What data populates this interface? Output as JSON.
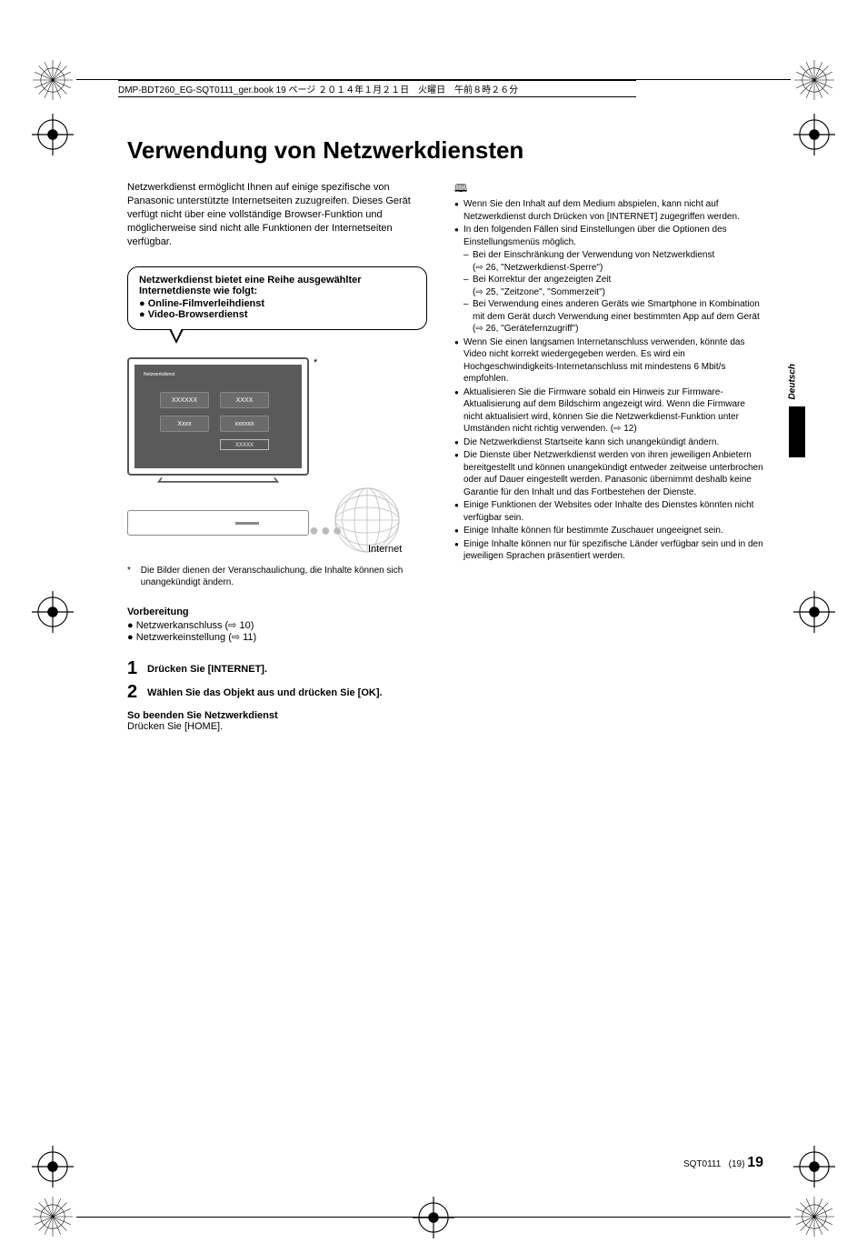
{
  "header_info": "DMP-BDT260_EG-SQT0111_ger.book  19 ページ  ２０１４年１月２１日　火曜日　午前８時２６分",
  "title": "Verwendung von Netzwerkdiensten",
  "intro": "Netzwerkdienst ermöglicht Ihnen auf einige spezifische von Panasonic unterstützte Internetseiten zuzugreifen. Dieses Gerät verfügt nicht über eine vollständige Browser-Funktion und möglicherweise sind nicht alle Funktionen der Internetseiten verfügbar.",
  "callout": {
    "title": "Netzwerkdienst bietet eine Reihe ausgewählter Internetdienste wie folgt:",
    "items": [
      "Online-Filmverleihdienst",
      "Video-Browserdienst"
    ]
  },
  "tv": {
    "header": "Netzwerkdienst",
    "b1": "XXXXXX",
    "b2": "XXXX",
    "b3": "Xxxx",
    "b4": "xxxxxx",
    "small": "XXXXX"
  },
  "asterisk": "*",
  "internet_label": "Internet",
  "footnote": {
    "mark": "*",
    "text": "Die Bilder dienen der Veranschaulichung, die Inhalte können sich unangekündigt ändern."
  },
  "prep": {
    "title": "Vorbereitung",
    "items": [
      "Netzwerkanschluss (⇨ 10)",
      "Netzwerkeinstellung (⇨ 11)"
    ]
  },
  "steps": [
    {
      "num": "1",
      "text": "Drücken Sie [INTERNET]."
    },
    {
      "num": "2",
      "text": "Wählen Sie das Objekt aus und drücken Sie [OK]."
    }
  ],
  "exit_title": "So beenden Sie Netzwerkdienst",
  "exit_text": "Drücken Sie [HOME].",
  "notes": [
    {
      "text": "Wenn Sie den Inhalt auf dem Medium abspielen, kann nicht auf Netzwerkdienst durch Drücken von [INTERNET] zugegriffen werden."
    },
    {
      "text": "In den folgenden Fällen sind Einstellungen über die Optionen des Einstellungsmenüs möglich.",
      "sub": [
        "Bei der Einschränkung der Verwendung von Netzwerkdienst\n(⇨ 26, \"Netzwerkdienst-Sperre\")",
        "Bei Korrektur der angezeigten Zeit\n(⇨ 25, \"Zeitzone\", \"Sommerzeit\")",
        "Bei Verwendung eines anderen Geräts wie Smartphone in Kombination mit dem Gerät durch Verwendung einer bestimmten App auf dem Gerät\n(⇨ 26, \"Gerätefernzugriff\")"
      ]
    },
    {
      "text": "Wenn Sie einen langsamen Internetanschluss verwenden, könnte das Video nicht korrekt wiedergegeben werden. Es wird ein Hochgeschwindigkeits-Internetanschluss mit mindestens 6 Mbit/s empfohlen."
    },
    {
      "text": "Aktualisieren Sie die Firmware sobald ein Hinweis zur Firmware-Aktualisierung auf dem Bildschirm angezeigt wird. Wenn die Firmware nicht aktualisiert wird, können Sie die Netzwerkdienst-Funktion unter Umständen nicht richtig verwenden. (⇨ 12)"
    },
    {
      "text": "Die Netzwerkdienst Startseite kann sich unangekündigt ändern."
    },
    {
      "text": "Die Dienste über Netzwerkdienst werden von ihren jeweiligen Anbietern bereitgestellt und können unangekündigt entweder zeitweise unterbrochen oder auf Dauer eingestellt werden. Panasonic übernimmt deshalb keine Garantie für den Inhalt und das Fortbestehen der Dienste."
    },
    {
      "text": "Einige Funktionen der Websites oder Inhalte des Dienstes könnten nicht verfügbar sein."
    },
    {
      "text": "Einige Inhalte können für bestimmte Zuschauer ungeeignet sein."
    },
    {
      "text": "Einige Inhalte können nur für spezifische Länder verfügbar sein und in den jeweiligen Sprachen präsentiert werden."
    }
  ],
  "side_tab": "Deutsch",
  "footer": {
    "code": "SQT0111",
    "seq": "(19)",
    "page": "19"
  }
}
